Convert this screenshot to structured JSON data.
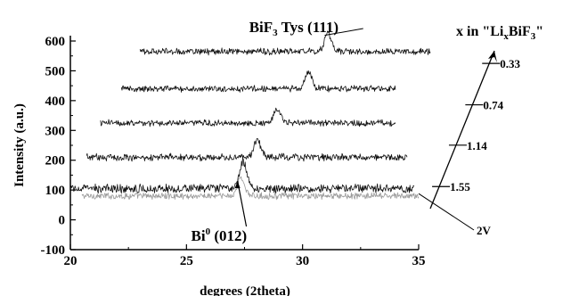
{
  "chart_data": {
    "type": "line",
    "xlabel": "degrees (2theta)",
    "ylabel": "Intensity (a.u.)",
    "xlim": [
      20,
      35
    ],
    "ylim": [
      -100,
      600
    ],
    "x_ticks": [
      20,
      25,
      30,
      35
    ],
    "x_tick_labels": [
      "20",
      "25",
      "30",
      "35"
    ],
    "y_ticks": [
      -100,
      0,
      100,
      200,
      300,
      400,
      500,
      600
    ],
    "y_tick_labels": [
      "-100",
      "0",
      "100",
      "200",
      "300",
      "400",
      "500",
      "600"
    ],
    "grid": false,
    "series": [
      {
        "x_start": 20.5,
        "x_end": 35.0,
        "peak_x": 27.35,
        "peak_height": 60,
        "baseline": 80,
        "noise": 9,
        "color": "#9a9a9a",
        "marker": "",
        "marker_side": "none"
      },
      {
        "x_start": 20.0,
        "x_end": 34.8,
        "peak_x": 27.45,
        "peak_height": 90,
        "baseline": 105,
        "noise": 12,
        "color": "#111111",
        "marker": "1.55",
        "marker_side": "right"
      },
      {
        "x_start": 20.7,
        "x_end": 34.5,
        "peak_x": 28.05,
        "peak_height": 55,
        "baseline": 210,
        "noise": 10,
        "color": "#111111",
        "marker": "1.14",
        "marker_side": "right"
      },
      {
        "x_start": 21.3,
        "x_end": 34.0,
        "peak_x": 28.9,
        "peak_height": 45,
        "baseline": 325,
        "noise": 9,
        "color": "#111111",
        "marker": "0.74",
        "marker_side": "right"
      },
      {
        "x_start": 22.2,
        "x_end": 34.0,
        "peak_x": 30.25,
        "peak_height": 55,
        "baseline": 440,
        "noise": 9,
        "color": "#111111",
        "marker": "0.33",
        "marker_side": "right"
      },
      {
        "x_start": 23.0,
        "x_end": 35.5,
        "peak_x": 31.1,
        "peak_height": 60,
        "baseline": 565,
        "noise": 9,
        "color": "#111111",
        "marker": "",
        "marker_side": "none"
      }
    ],
    "annotations": [
      {
        "text": "BiF",
        "sub": "3",
        "suffix": " Tys (111)",
        "x": 27.7,
        "y": 630,
        "arrow_to_x": 30.95,
        "arrow_to_y": 625
      },
      {
        "text": "Bi",
        "sup": "0",
        "suffix": " (012)",
        "x": 25.2,
        "y": -70,
        "arrow_to_x": 27.2,
        "arrow_to_y": 130
      }
    ],
    "x_indicator": {
      "title_prefix": "x in \"Li",
      "title_sub1": "x",
      "title_mid": "BiF",
      "title_sub2": "3",
      "title_suffix": "\"",
      "extra_label": "2V",
      "levels": [
        {
          "label": "0.33",
          "value": 0.33
        },
        {
          "label": "0.74",
          "value": 0.74
        },
        {
          "label": "1.14",
          "value": 1.14
        },
        {
          "label": "1.55",
          "value": 1.55
        }
      ]
    }
  }
}
